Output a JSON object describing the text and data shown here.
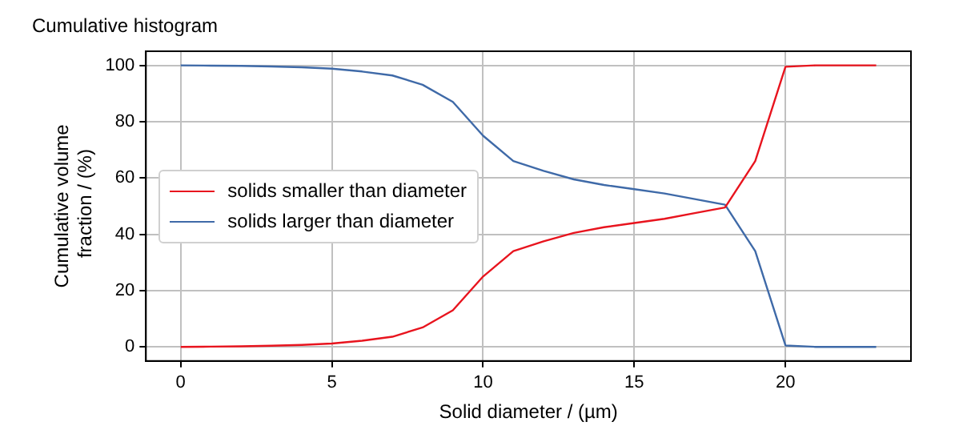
{
  "chart_data": {
    "type": "line",
    "title": "Cumulative histogram",
    "xlabel": "Solid diameter / (µm)",
    "ylabel": "Cumulative volume fraction / (%)",
    "x": [
      0,
      1,
      2,
      3,
      4,
      5,
      6,
      7,
      8,
      9,
      10,
      11,
      12,
      13,
      14,
      15,
      16,
      17,
      18,
      19,
      20,
      21,
      22,
      23
    ],
    "series": [
      {
        "name": "solids smaller than diameter",
        "color": "#e8141e",
        "values": [
          0,
          0.1,
          0.2,
          0.4,
          0.7,
          1.2,
          2.2,
          3.6,
          6.9,
          13,
          25,
          34,
          37.5,
          40.5,
          42.5,
          44,
          45.5,
          47.5,
          49.5,
          66,
          99.5,
          100,
          100,
          100
        ]
      },
      {
        "name": "solids larger than diameter",
        "color": "#3f6aa8",
        "values": [
          100,
          99.9,
          99.8,
          99.6,
          99.3,
          98.8,
          97.8,
          96.4,
          93.1,
          87,
          75,
          66,
          62.5,
          59.5,
          57.5,
          56,
          54.5,
          52.5,
          50.5,
          34,
          0.5,
          0,
          0,
          0
        ]
      }
    ],
    "xlim": [
      -1.15,
      24.15
    ],
    "xticks": [
      0,
      5,
      10,
      15,
      20
    ],
    "ylim": [
      -5,
      105
    ],
    "yticks": [
      0,
      20,
      40,
      60,
      80,
      100
    ],
    "grid": true,
    "legend": "left",
    "marker": "none",
    "line_style": "solid"
  }
}
